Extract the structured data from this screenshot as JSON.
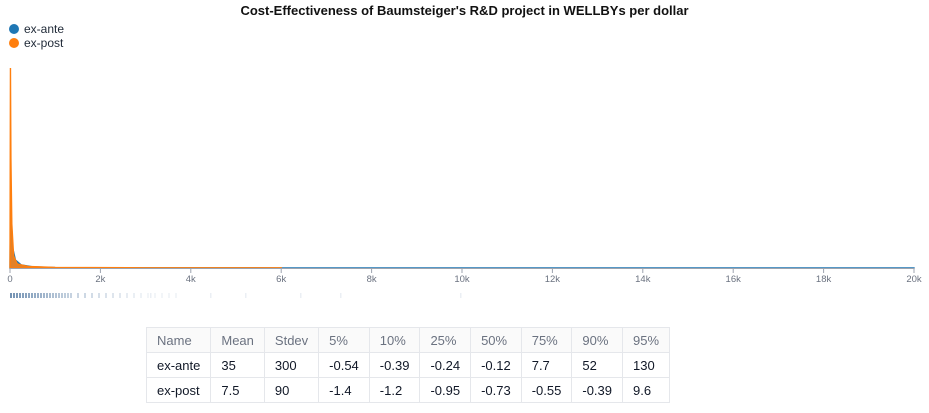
{
  "chart_data": {
    "type": "area",
    "title": "Cost-Effectiveness of Baumsteiger's R&D project in WELLBYs per dollar",
    "x_ticks": [
      "0",
      "2k",
      "4k",
      "6k",
      "8k",
      "10k",
      "12k",
      "14k",
      "16k",
      "18k",
      "20k"
    ],
    "xlim": [
      0,
      20000
    ],
    "legend_position": "top-left",
    "series": [
      {
        "name": "ex-ante",
        "color": "#1f77b4",
        "x": [
          0,
          15,
          30,
          60,
          120,
          250,
          500,
          1000,
          2000,
          6000,
          20000
        ],
        "density": [
          0.0,
          0.42,
          0.24,
          0.1,
          0.04,
          0.015,
          0.006,
          0.002,
          0.001,
          0.0005,
          0.0004
        ]
      },
      {
        "name": "ex-post",
        "color": "#ff7f0e",
        "x": [
          0,
          10,
          20,
          40,
          80,
          160,
          400,
          1000,
          3000,
          6000
        ],
        "density": [
          0.0,
          1.0,
          0.55,
          0.22,
          0.06,
          0.02,
          0.008,
          0.003,
          0.001,
          0.0006
        ]
      }
    ]
  },
  "table": {
    "headers": [
      "Name",
      "Mean",
      "Stdev",
      "5%",
      "10%",
      "25%",
      "50%",
      "75%",
      "90%",
      "95%"
    ],
    "rows": [
      [
        "ex-ante",
        "35",
        "300",
        "-0.54",
        "-0.39",
        "-0.24",
        "-0.12",
        "7.7",
        "52",
        "130"
      ],
      [
        "ex-post",
        "7.5",
        "90",
        "-1.4",
        "-1.2",
        "-0.95",
        "-0.73",
        "-0.55",
        "-0.39",
        "9.6"
      ]
    ]
  }
}
